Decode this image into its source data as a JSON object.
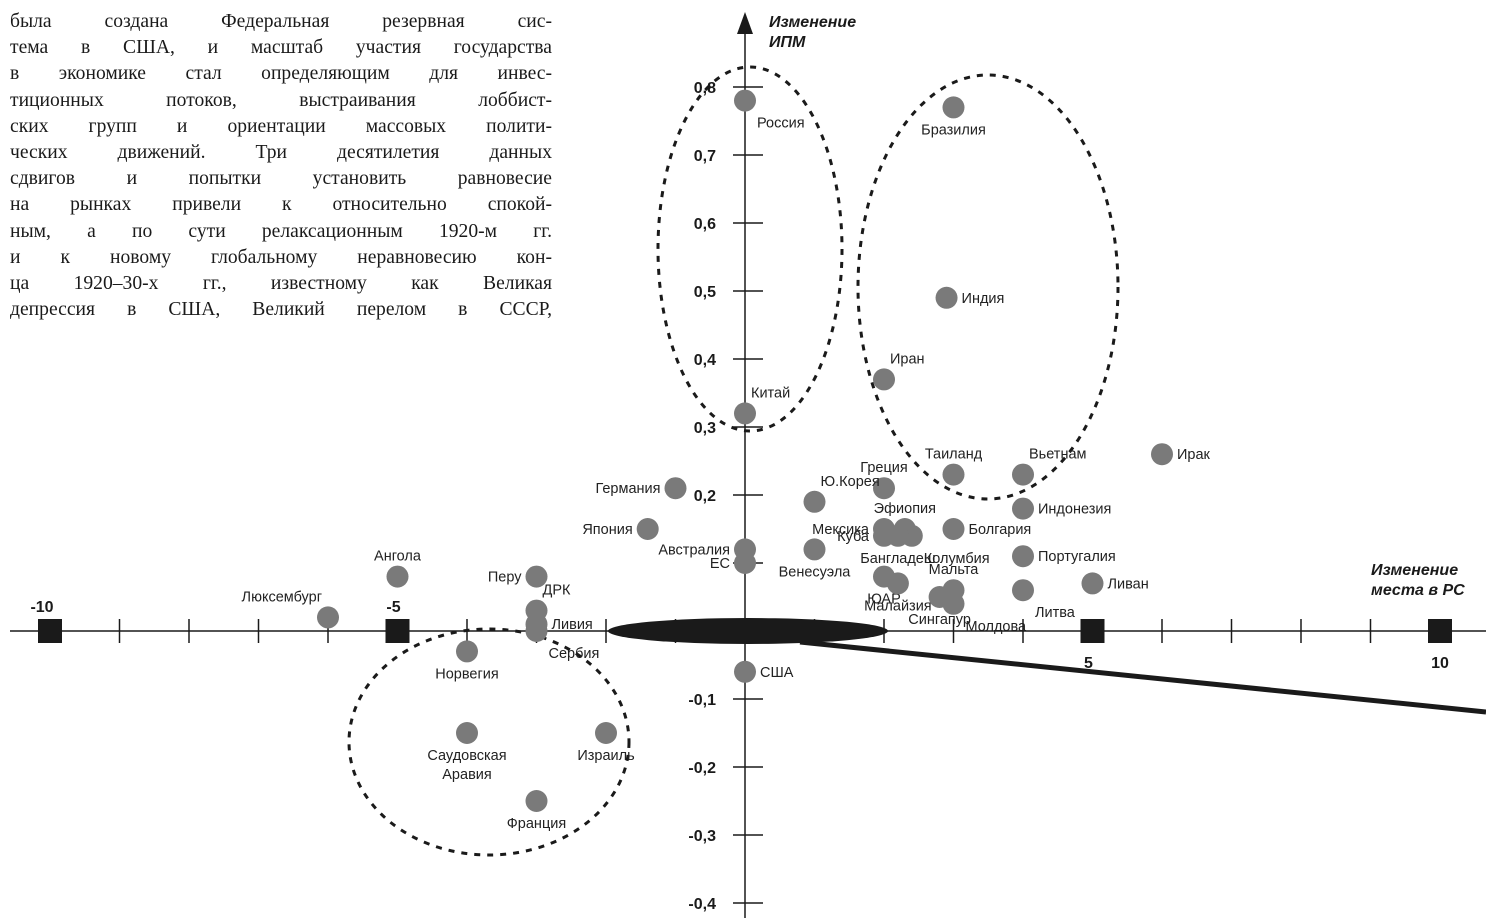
{
  "text_lines": [
    "была создана Федеральная резервная сис-",
    "тема в США, и масштаб участия государства",
    "в экономике стал определяющим для инвес-",
    "тиционных потоков, выстраивания лоббист-",
    "ских групп и ориентации массовых полити-",
    "ческих движений. Три десятилетия данных",
    "сдвигов и попытки установить равновесие",
    "на рынках привели к относительно спокой-",
    "ным, а по сути релаксационным 1920-м гг.",
    "и к новому глобальному неравновесию кон-",
    "ца 1920–30-х гг., известному как Великая",
    "депрессия в США, Великий перелом в СССР,"
  ],
  "chart_data": {
    "type": "scatter",
    "title": "",
    "ylabel": [
      "Изменение",
      "ИПМ"
    ],
    "xlabel": [
      "Изменение",
      "места в РС"
    ],
    "xlim": [
      -10,
      10
    ],
    "ylim": [
      -0.4,
      0.8
    ],
    "x_tick_labels": [
      {
        "x": -10,
        "label": "-10"
      },
      {
        "x": -5,
        "label": "-5"
      },
      {
        "x": 5,
        "label": "5"
      },
      {
        "x": 10,
        "label": "10"
      }
    ],
    "y_tick_labels": [
      {
        "y": 0.8,
        "label": "0,8"
      },
      {
        "y": 0.7,
        "label": "0,7"
      },
      {
        "y": 0.6,
        "label": "0,6"
      },
      {
        "y": 0.5,
        "label": "0,5"
      },
      {
        "y": 0.4,
        "label": "0,4"
      },
      {
        "y": 0.3,
        "label": "0,3"
      },
      {
        "y": 0.2,
        "label": "0,2"
      },
      {
        "y": -0.1,
        "label": "-0,1"
      },
      {
        "y": -0.2,
        "label": "-0,2"
      },
      {
        "y": -0.3,
        "label": "-0,3"
      },
      {
        "y": -0.4,
        "label": "-0,4"
      }
    ],
    "point_color": "#7a7a7a",
    "points": [
      {
        "name": "Россия",
        "x": 0.0,
        "y": 0.78,
        "pos": "br"
      },
      {
        "name": "Бразилия",
        "x": 3.0,
        "y": 0.77,
        "pos": "b"
      },
      {
        "name": "Индия",
        "x": 2.9,
        "y": 0.49,
        "pos": "r"
      },
      {
        "name": "Иран",
        "x": 2.0,
        "y": 0.37,
        "pos": "tr"
      },
      {
        "name": "Китай",
        "x": 0.0,
        "y": 0.32,
        "pos": "tr"
      },
      {
        "name": "Ирак",
        "x": 6.0,
        "y": 0.26,
        "pos": "r"
      },
      {
        "name": "Таиланд",
        "x": 3.0,
        "y": 0.23,
        "pos": "t"
      },
      {
        "name": "Вьетнам",
        "x": 4.0,
        "y": 0.23,
        "pos": "tr"
      },
      {
        "name": "Греция",
        "x": 2.0,
        "y": 0.21,
        "pos": "t"
      },
      {
        "name": "Германия",
        "x": -1.0,
        "y": 0.21,
        "pos": "l"
      },
      {
        "name": "Ю.Корея",
        "x": 1.0,
        "y": 0.19,
        "pos": "tr"
      },
      {
        "name": "Индонезия",
        "x": 4.0,
        "y": 0.18,
        "pos": "r"
      },
      {
        "name": "Япония",
        "x": -1.4,
        "y": 0.15,
        "pos": "l"
      },
      {
        "name": "Эфиопия",
        "x": 2.3,
        "y": 0.15,
        "pos": "t"
      },
      {
        "name": "Мексика",
        "x": 2.0,
        "y": 0.15,
        "pos": "l"
      },
      {
        "name": "Болгария",
        "x": 3.0,
        "y": 0.15,
        "pos": "r"
      },
      {
        "name": "Куба",
        "x": 2.0,
        "y": 0.14,
        "pos": "l"
      },
      {
        "name": "Колумбия",
        "x": 2.4,
        "y": 0.14,
        "pos": "br"
      },
      {
        "name": "Бангладеш",
        "x": 2.2,
        "y": 0.14,
        "pos": "b"
      },
      {
        "name": "Австралия",
        "x": 0.0,
        "y": 0.12,
        "pos": "l"
      },
      {
        "name": "Венесуэла",
        "x": 1.0,
        "y": 0.12,
        "pos": "b"
      },
      {
        "name": "Португалия",
        "x": 4.0,
        "y": 0.11,
        "pos": "r"
      },
      {
        "name": "ЕС",
        "x": 0.0,
        "y": 0.1,
        "pos": "l"
      },
      {
        "name": "Ангола",
        "x": -5.0,
        "y": 0.08,
        "pos": "t"
      },
      {
        "name": "Перу",
        "x": -3.0,
        "y": 0.08,
        "pos": "l"
      },
      {
        "name": "ЮАР",
        "x": 2.0,
        "y": 0.08,
        "pos": "b"
      },
      {
        "name": "Малайзия",
        "x": 2.2,
        "y": 0.07,
        "pos": "b"
      },
      {
        "name": "Ливан",
        "x": 5.0,
        "y": 0.07,
        "pos": "r"
      },
      {
        "name": "Мальта",
        "x": 3.0,
        "y": 0.06,
        "pos": "t"
      },
      {
        "name": "Литва",
        "x": 4.0,
        "y": 0.06,
        "pos": "br"
      },
      {
        "name": "Сингапур",
        "x": 2.8,
        "y": 0.05,
        "pos": "b"
      },
      {
        "name": "Молдова",
        "x": 3.0,
        "y": 0.04,
        "pos": "br"
      },
      {
        "name": "Люксембург",
        "x": -6.0,
        "y": 0.02,
        "pos": "tl"
      },
      {
        "name": "ДРК",
        "x": -3.0,
        "y": 0.03,
        "pos": "tr"
      },
      {
        "name": "Ливия",
        "x": -3.0,
        "y": 0.01,
        "pos": "r"
      },
      {
        "name": "Сербия",
        "x": -3.0,
        "y": 0.0,
        "pos": "br"
      },
      {
        "name": "Норвегия",
        "x": -4.0,
        "y": -0.03,
        "pos": "b"
      },
      {
        "name": "США",
        "x": 0.0,
        "y": -0.06,
        "pos": "r"
      },
      {
        "name": "Саудовская Аравия",
        "x": -4.0,
        "y": -0.15,
        "pos": "b"
      },
      {
        "name": "Израиль",
        "x": -2.0,
        "y": -0.15,
        "pos": "b"
      },
      {
        "name": "Франция",
        "x": -3.0,
        "y": -0.25,
        "pos": "b"
      }
    ]
  }
}
